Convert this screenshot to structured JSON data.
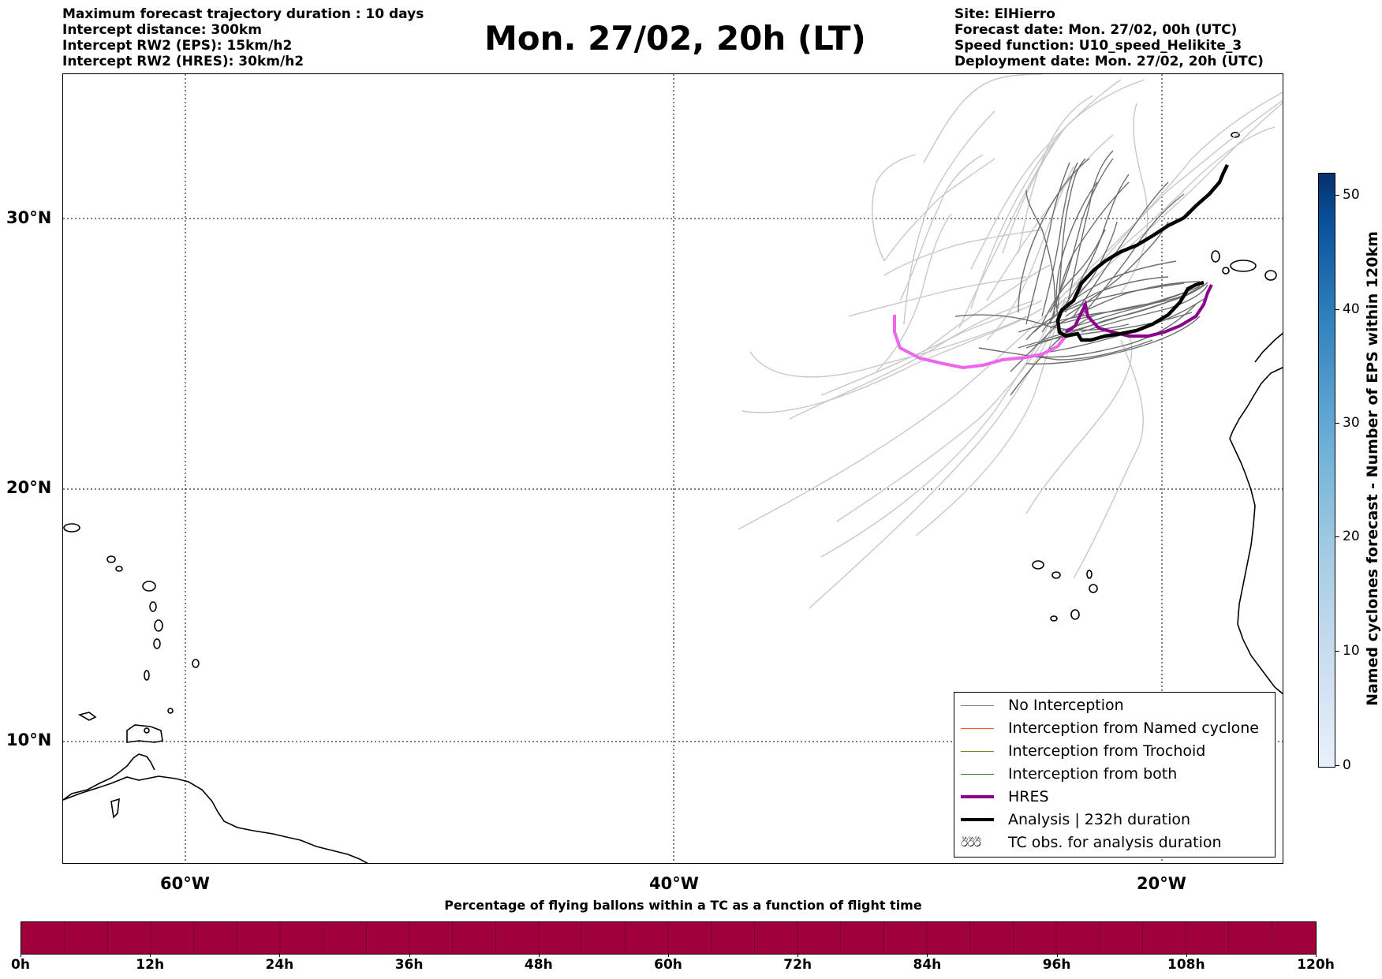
{
  "header": {
    "left_info": [
      "Maximum forecast trajectory duration : 10 days",
      "Intercept distance: 300km",
      "Intercept RW2 (EPS):  15km/h2",
      "Intercept RW2 (HRES): 30km/h2"
    ],
    "title": "Mon. 27/02, 20h (LT)",
    "right_info": [
      "Site: ElHierro",
      "Forecast date: Mon. 27/02, 00h (UTC)",
      "Speed function: U10_speed_Helikite_3",
      "Deployment date: Mon. 27/02, 20h (UTC)"
    ]
  },
  "map": {
    "lat_labels": [
      "30°N",
      "20°N",
      "10°N"
    ],
    "lon_labels": [
      "60°W",
      "40°W",
      "20°W"
    ],
    "gridlines": "dotted"
  },
  "legend": {
    "items": [
      {
        "label": "No Interception",
        "color": "#808080"
      },
      {
        "label": "Interception from Named cyclone",
        "color": "#ff5a1a"
      },
      {
        "label": "Interception from Trochoid",
        "color": "#808020"
      },
      {
        "label": "Interception from both",
        "color": "#2a8a2a"
      },
      {
        "label": "HRES",
        "color": "#8b008b"
      },
      {
        "label": "Analysis | 232h duration",
        "color": "#000000"
      },
      {
        "label": "TC obs. for analysis duration",
        "color": "#000000",
        "symbol": "ඊඊඊ"
      }
    ]
  },
  "colorbar": {
    "title": "Named cyclones forecast - Number of EPS within 120km",
    "ticks": [
      "0",
      "10",
      "20",
      "30",
      "40",
      "50"
    ]
  },
  "time_bar": {
    "title": "Percentage of flying ballons within a TC as a function of flight time",
    "color": "#a0003c",
    "ticks": [
      "0h",
      "12h",
      "24h",
      "36h",
      "48h",
      "60h",
      "72h",
      "84h",
      "96h",
      "108h",
      "120h"
    ]
  },
  "colors": {
    "eps_gray": "#6e6e6e",
    "eps_light": "#c8c8c8",
    "hres": "#8b008b",
    "hres_light": "#ee66ee",
    "analysis": "#000000"
  }
}
